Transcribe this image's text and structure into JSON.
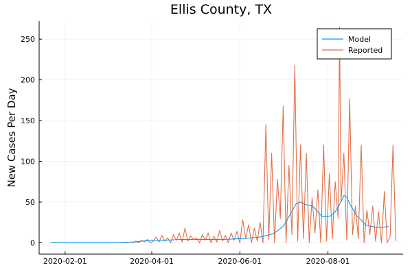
{
  "chart_data": {
    "type": "line",
    "title": "Ellis County, TX",
    "xlabel": "",
    "ylabel": "New Cases Per Day",
    "xlim": [
      "2020-01-14",
      "2020-09-22"
    ],
    "ylim": [
      -14,
      272
    ],
    "x_ticks": [
      "2020-02-01",
      "2020-04-01",
      "2020-06-01",
      "2020-08-01"
    ],
    "y_ticks": [
      0,
      50,
      100,
      150,
      200,
      250
    ],
    "grid": true,
    "legend_position": "top-right",
    "colors": {
      "Model": "#009af9",
      "Reported": "#e26f46"
    },
    "series": [
      {
        "name": "Model",
        "x": [
          "2020-01-22",
          "2020-02-15",
          "2020-03-10",
          "2020-03-20",
          "2020-03-25",
          "2020-04-01",
          "2020-04-10",
          "2020-04-20",
          "2020-05-01",
          "2020-05-10",
          "2020-05-20",
          "2020-06-01",
          "2020-06-10",
          "2020-06-15",
          "2020-06-20",
          "2020-06-25",
          "2020-07-01",
          "2020-07-05",
          "2020-07-08",
          "2020-07-10",
          "2020-07-13",
          "2020-07-16",
          "2020-07-19",
          "2020-07-22",
          "2020-07-25",
          "2020-07-28",
          "2020-07-31",
          "2020-08-03",
          "2020-08-06",
          "2020-08-08",
          "2020-08-10",
          "2020-08-12",
          "2020-08-14",
          "2020-08-16",
          "2020-08-18",
          "2020-08-21",
          "2020-08-24",
          "2020-08-27",
          "2020-08-31",
          "2020-09-04",
          "2020-09-08",
          "2020-09-12"
        ],
        "y": [
          0,
          0,
          0,
          1,
          2,
          3,
          3,
          4,
          4,
          4,
          4,
          5,
          6,
          7,
          9,
          12,
          20,
          32,
          42,
          48,
          50,
          47,
          46,
          44,
          38,
          32,
          32,
          33,
          38,
          44,
          50,
          58,
          56,
          48,
          42,
          33,
          28,
          22,
          20,
          19,
          19,
          20
        ]
      },
      {
        "name": "Reported",
        "x": [
          "2020-01-22",
          "2020-03-15",
          "2020-03-17",
          "2020-03-19",
          "2020-03-21",
          "2020-03-23",
          "2020-03-25",
          "2020-03-27",
          "2020-03-29",
          "2020-03-31",
          "2020-04-02",
          "2020-04-04",
          "2020-04-06",
          "2020-04-08",
          "2020-04-10",
          "2020-04-12",
          "2020-04-14",
          "2020-04-16",
          "2020-04-18",
          "2020-04-20",
          "2020-04-22",
          "2020-04-24",
          "2020-04-26",
          "2020-04-28",
          "2020-04-30",
          "2020-05-02",
          "2020-05-04",
          "2020-05-06",
          "2020-05-08",
          "2020-05-10",
          "2020-05-12",
          "2020-05-14",
          "2020-05-16",
          "2020-05-18",
          "2020-05-20",
          "2020-05-22",
          "2020-05-24",
          "2020-05-26",
          "2020-05-28",
          "2020-05-30",
          "2020-06-01",
          "2020-06-03",
          "2020-06-05",
          "2020-06-07",
          "2020-06-09",
          "2020-06-11",
          "2020-06-13",
          "2020-06-15",
          "2020-06-17",
          "2020-06-19",
          "2020-06-21",
          "2020-06-23",
          "2020-06-25",
          "2020-06-27",
          "2020-06-29",
          "2020-07-01",
          "2020-07-03",
          "2020-07-05",
          "2020-07-07",
          "2020-07-09",
          "2020-07-11",
          "2020-07-13",
          "2020-07-15",
          "2020-07-17",
          "2020-07-19",
          "2020-07-21",
          "2020-07-23",
          "2020-07-25",
          "2020-07-27",
          "2020-07-29",
          "2020-07-31",
          "2020-08-02",
          "2020-08-04",
          "2020-08-06",
          "2020-08-08",
          "2020-08-09",
          "2020-08-10",
          "2020-08-12",
          "2020-08-14",
          "2020-08-16",
          "2020-08-18",
          "2020-08-20",
          "2020-08-22",
          "2020-08-24",
          "2020-08-26",
          "2020-08-28",
          "2020-08-30",
          "2020-09-01",
          "2020-09-03",
          "2020-09-05",
          "2020-09-07",
          "2020-09-09",
          "2020-09-11",
          "2020-09-13",
          "2020-09-15",
          "2020-09-17"
        ],
        "y": [
          0,
          0,
          1,
          0,
          2,
          0,
          3,
          1,
          4,
          0,
          2,
          7,
          1,
          9,
          2,
          6,
          0,
          10,
          3,
          12,
          1,
          18,
          2,
          8,
          4,
          6,
          0,
          10,
          3,
          12,
          0,
          8,
          1,
          15,
          2,
          9,
          0,
          12,
          3,
          14,
          0,
          28,
          5,
          22,
          0,
          18,
          2,
          25,
          0,
          145,
          4,
          110,
          0,
          78,
          30,
          168,
          0,
          95,
          10,
          218,
          2,
          120,
          5,
          110,
          0,
          55,
          12,
          65,
          0,
          120,
          2,
          85,
          5,
          75,
          30,
          265,
          50,
          110,
          3,
          177,
          10,
          45,
          5,
          120,
          0,
          40,
          10,
          45,
          2,
          38,
          0,
          63,
          0,
          8,
          120,
          2
        ]
      }
    ]
  }
}
